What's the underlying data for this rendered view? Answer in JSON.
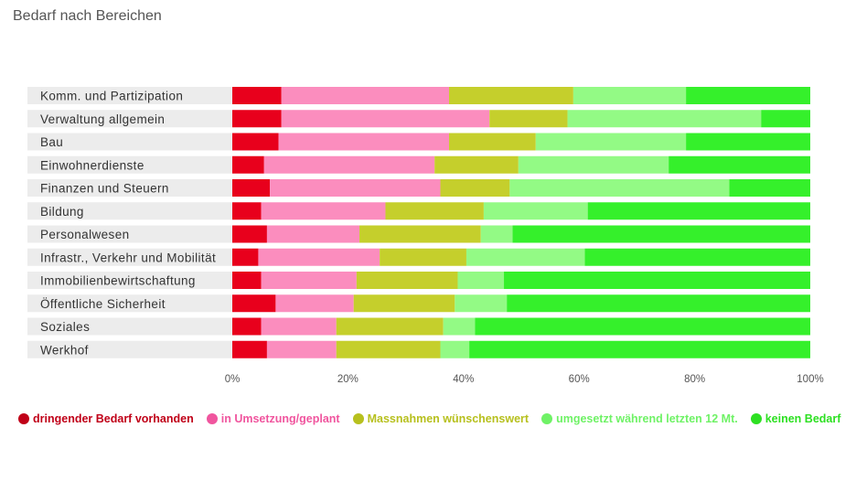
{
  "chart_data": {
    "type": "bar",
    "orientation": "horizontal",
    "stacked": true,
    "title": "Bedarf nach Bereichen",
    "categories": [
      "Komm. und Partizipation",
      "Verwaltung allgemein",
      "Bau",
      "Einwohnerdienste",
      "Finanzen und Steuern",
      "Bildung",
      "Personalwesen",
      "Infrastr., Verkehr und Mobilität",
      "Immobilienbewirtschaftung",
      "Öffentliche Sicherheit",
      "Soziales",
      "Werkhof"
    ],
    "series": [
      {
        "name": "dringender Bedarf vorhanden",
        "color": "#e8001c",
        "legend_color": "#c00018",
        "values": [
          8.5,
          8.5,
          8.0,
          5.5,
          6.5,
          5.0,
          6.0,
          4.5,
          5.0,
          7.5,
          5.0,
          6.0
        ]
      },
      {
        "name": "in Umsetzung/geplant",
        "color": "#fb8dbe",
        "legend_color": "#f0559e",
        "values": [
          29.0,
          36.0,
          29.5,
          29.5,
          29.5,
          21.5,
          16.0,
          21.0,
          16.5,
          13.5,
          13.0,
          12.0
        ]
      },
      {
        "name": "Massnahmen wünschenswert",
        "color": "#c5cf2c",
        "legend_color": "#b7c01e",
        "values": [
          21.5,
          13.5,
          15.0,
          14.5,
          12.0,
          17.0,
          21.0,
          15.0,
          17.5,
          17.5,
          18.5,
          18.0
        ]
      },
      {
        "name": "umgesetzt während letzten 12 Mt.",
        "color": "#93fa85",
        "legend_color": "#6ff266",
        "values": [
          19.5,
          33.5,
          26.0,
          26.0,
          38.0,
          18.0,
          5.5,
          20.5,
          8.0,
          9.0,
          5.5,
          5.0
        ]
      },
      {
        "name": "keinen Bedarf",
        "color": "#35f02b",
        "legend_color": "#2de022",
        "values": [
          21.5,
          8.5,
          21.5,
          24.5,
          14.0,
          38.5,
          51.5,
          39.0,
          53.0,
          52.5,
          58.0,
          59.0
        ]
      }
    ],
    "xlim": [
      0,
      100
    ],
    "x_ticks": [
      "0%",
      "20%",
      "40%",
      "60%",
      "80%",
      "100%"
    ],
    "x_tick_values": [
      0,
      20,
      40,
      60,
      80,
      100
    ],
    "legend_position": "bottom",
    "grid": false,
    "label_background": "#ececec"
  }
}
